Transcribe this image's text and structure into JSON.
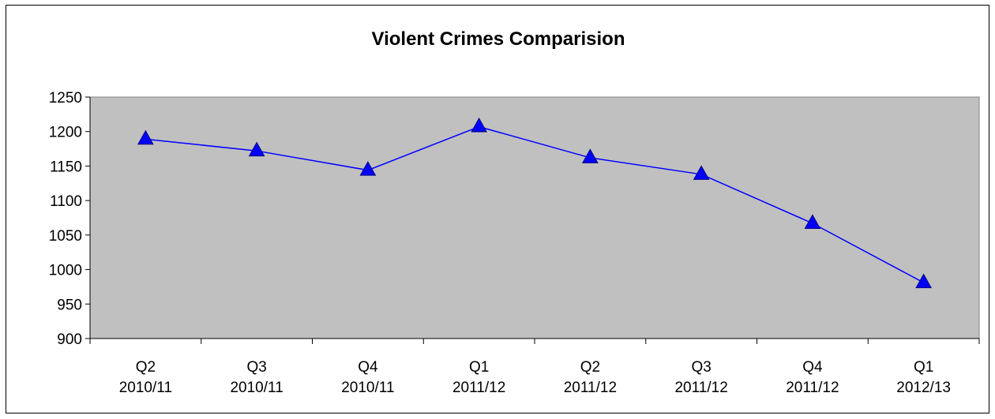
{
  "chart_data": {
    "type": "line",
    "title": "Violent Crimes Comparision",
    "xlabel": "",
    "ylabel": "",
    "categories": [
      [
        "Q2",
        "2010/11"
      ],
      [
        "Q3",
        "2010/11"
      ],
      [
        "Q4",
        "2010/11"
      ],
      [
        "Q1",
        "2011/12"
      ],
      [
        "Q2",
        "2011/12"
      ],
      [
        "Q3",
        "2011/12"
      ],
      [
        "Q4",
        "2011/12"
      ],
      [
        "Q1",
        "2012/13"
      ]
    ],
    "series": [
      {
        "values": [
          1189,
          1172,
          1144,
          1207,
          1162,
          1138,
          1067,
          981
        ]
      }
    ],
    "ylim": [
      900,
      1250
    ],
    "yticks": [
      "900",
      "950",
      "1000",
      "1050",
      "1100",
      "1150",
      "1200",
      "1250"
    ],
    "grid": false,
    "legend": "none",
    "colors": {
      "plot_background": "#c0c0c0",
      "series_line": "#0000ff",
      "marker": "#0000ff"
    },
    "marker": "triangle"
  }
}
